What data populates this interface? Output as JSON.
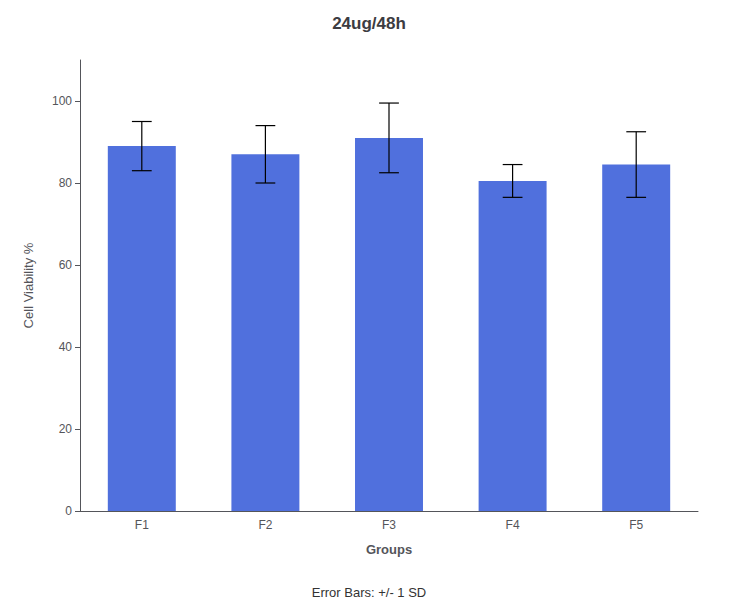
{
  "chart_data": {
    "type": "bar",
    "title": "24ug/48h",
    "xlabel": "Groups",
    "ylabel": "Cell Viability %",
    "categories": [
      "F1",
      "F2",
      "F3",
      "F4",
      "F5"
    ],
    "values": [
      89.0,
      87.0,
      91.0,
      80.5,
      84.5
    ],
    "errors": [
      6.0,
      7.0,
      8.5,
      4.0,
      8.0
    ],
    "ylim": [
      0,
      110
    ],
    "yticks": [
      0,
      20,
      40,
      60,
      80,
      100
    ],
    "grid": false,
    "annotation": "Error Bars: +/- 1 SD"
  }
}
